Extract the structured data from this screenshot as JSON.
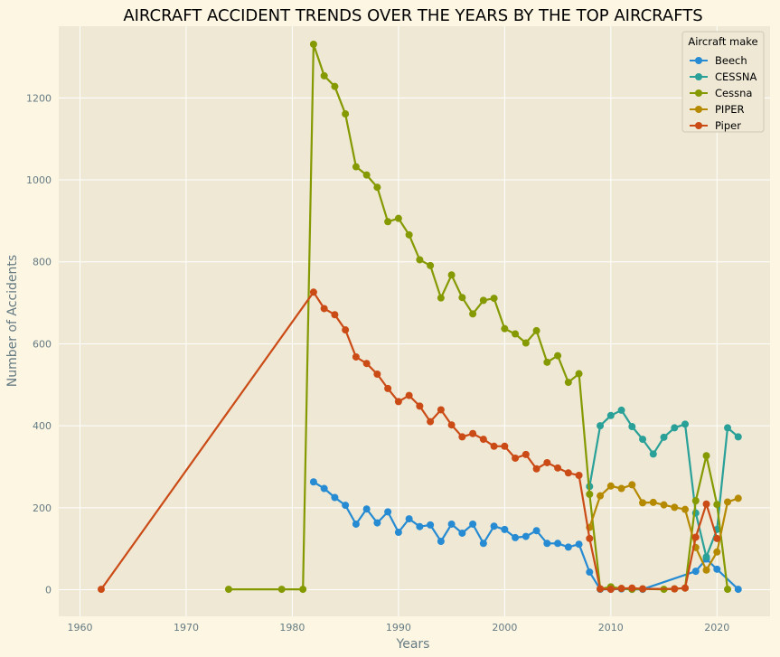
{
  "chart_data": {
    "type": "line",
    "title": "AIRCRAFT ACCIDENT TRENDS OVER THE YEARS BY THE TOP AIRCRAFTS",
    "xlabel": "Years",
    "ylabel": "Number of Accidents",
    "xlim": [
      1958,
      2025
    ],
    "ylim": [
      -65,
      1375
    ],
    "xticks": [
      1960,
      1970,
      1980,
      1990,
      2000,
      2010,
      2020
    ],
    "yticks": [
      0,
      200,
      400,
      600,
      800,
      1000,
      1200
    ],
    "grid": true,
    "legend": {
      "title": "Aircraft make",
      "placement": "top-right"
    },
    "colors": {
      "figure_bg": "#fdf6e3",
      "axes_bg": "#eee8d5",
      "grid": "#ffffff",
      "text": "#657b83",
      "title": "#000000"
    },
    "series": [
      {
        "name": "Beech",
        "color": "#268bd2",
        "points": [
          [
            1982,
            263
          ],
          [
            1983,
            247
          ],
          [
            1984,
            225
          ],
          [
            1985,
            206
          ],
          [
            1986,
            160
          ],
          [
            1987,
            197
          ],
          [
            1988,
            163
          ],
          [
            1989,
            190
          ],
          [
            1990,
            140
          ],
          [
            1991,
            173
          ],
          [
            1992,
            154
          ],
          [
            1993,
            158
          ],
          [
            1994,
            118
          ],
          [
            1995,
            160
          ],
          [
            1996,
            138
          ],
          [
            1997,
            160
          ],
          [
            1998,
            113
          ],
          [
            1999,
            155
          ],
          [
            2000,
            147
          ],
          [
            2001,
            127
          ],
          [
            2002,
            130
          ],
          [
            2003,
            144
          ],
          [
            2004,
            113
          ],
          [
            2005,
            113
          ],
          [
            2006,
            104
          ],
          [
            2007,
            111
          ],
          [
            2008,
            43
          ],
          [
            2009,
            1
          ],
          [
            2010,
            1
          ],
          [
            2011,
            2
          ],
          [
            2012,
            1
          ],
          [
            2013,
            1
          ],
          [
            2018,
            45
          ],
          [
            2019,
            75
          ],
          [
            2020,
            50
          ],
          [
            2022,
            1
          ]
        ]
      },
      {
        "name": "CESSNA",
        "color": "#2aa198",
        "points": [
          [
            2008,
            252
          ],
          [
            2009,
            400
          ],
          [
            2010,
            425
          ],
          [
            2011,
            438
          ],
          [
            2012,
            398
          ],
          [
            2013,
            367
          ],
          [
            2014,
            331
          ],
          [
            2015,
            372
          ],
          [
            2016,
            395
          ],
          [
            2017,
            404
          ],
          [
            2018,
            187
          ],
          [
            2019,
            80
          ],
          [
            2020,
            147
          ],
          [
            2021,
            395
          ],
          [
            2022,
            373
          ]
        ]
      },
      {
        "name": "Cessna",
        "color": "#859900",
        "points": [
          [
            1974,
            1
          ],
          [
            1979,
            1
          ],
          [
            1981,
            1
          ],
          [
            1982,
            1331
          ],
          [
            1983,
            1254
          ],
          [
            1984,
            1228
          ],
          [
            1985,
            1161
          ],
          [
            1986,
            1032
          ],
          [
            1987,
            1012
          ],
          [
            1988,
            982
          ],
          [
            1989,
            898
          ],
          [
            1990,
            906
          ],
          [
            1991,
            866
          ],
          [
            1992,
            805
          ],
          [
            1993,
            791
          ],
          [
            1994,
            712
          ],
          [
            1995,
            768
          ],
          [
            1996,
            713
          ],
          [
            1997,
            673
          ],
          [
            1998,
            706
          ],
          [
            1999,
            711
          ],
          [
            2000,
            637
          ],
          [
            2001,
            624
          ],
          [
            2002,
            602
          ],
          [
            2003,
            632
          ],
          [
            2004,
            555
          ],
          [
            2005,
            571
          ],
          [
            2006,
            506
          ],
          [
            2007,
            527
          ],
          [
            2008,
            233
          ],
          [
            2009,
            2
          ],
          [
            2010,
            7
          ],
          [
            2011,
            3
          ],
          [
            2012,
            1
          ],
          [
            2013,
            2
          ],
          [
            2015,
            1
          ],
          [
            2016,
            2
          ],
          [
            2017,
            4
          ],
          [
            2018,
            217
          ],
          [
            2019,
            327
          ],
          [
            2020,
            208
          ],
          [
            2021,
            1
          ]
        ]
      },
      {
        "name": "PIPER",
        "color": "#b58900",
        "points": [
          [
            2008,
            152
          ],
          [
            2009,
            229
          ],
          [
            2010,
            253
          ],
          [
            2011,
            247
          ],
          [
            2012,
            256
          ],
          [
            2013,
            212
          ],
          [
            2014,
            213
          ],
          [
            2015,
            207
          ],
          [
            2016,
            201
          ],
          [
            2017,
            196
          ],
          [
            2018,
            103
          ],
          [
            2019,
            48
          ],
          [
            2020,
            92
          ],
          [
            2021,
            214
          ],
          [
            2022,
            223
          ]
        ]
      },
      {
        "name": "Piper",
        "color": "#cb4b16",
        "points": [
          [
            1962,
            1
          ],
          [
            1982,
            726
          ],
          [
            1983,
            686
          ],
          [
            1984,
            671
          ],
          [
            1985,
            634
          ],
          [
            1986,
            568
          ],
          [
            1987,
            552
          ],
          [
            1988,
            526
          ],
          [
            1989,
            491
          ],
          [
            1990,
            459
          ],
          [
            1991,
            474
          ],
          [
            1992,
            448
          ],
          [
            1993,
            410
          ],
          [
            1994,
            439
          ],
          [
            1995,
            402
          ],
          [
            1996,
            373
          ],
          [
            1997,
            381
          ],
          [
            1998,
            367
          ],
          [
            1999,
            350
          ],
          [
            2000,
            350
          ],
          [
            2001,
            321
          ],
          [
            2002,
            330
          ],
          [
            2003,
            295
          ],
          [
            2004,
            310
          ],
          [
            2005,
            297
          ],
          [
            2006,
            285
          ],
          [
            2007,
            279
          ],
          [
            2008,
            125
          ],
          [
            2009,
            2
          ],
          [
            2010,
            1
          ],
          [
            2011,
            3
          ],
          [
            2012,
            4
          ],
          [
            2013,
            2
          ],
          [
            2016,
            2
          ],
          [
            2017,
            4
          ],
          [
            2018,
            128
          ],
          [
            2019,
            209
          ],
          [
            2020,
            125
          ]
        ]
      }
    ]
  }
}
